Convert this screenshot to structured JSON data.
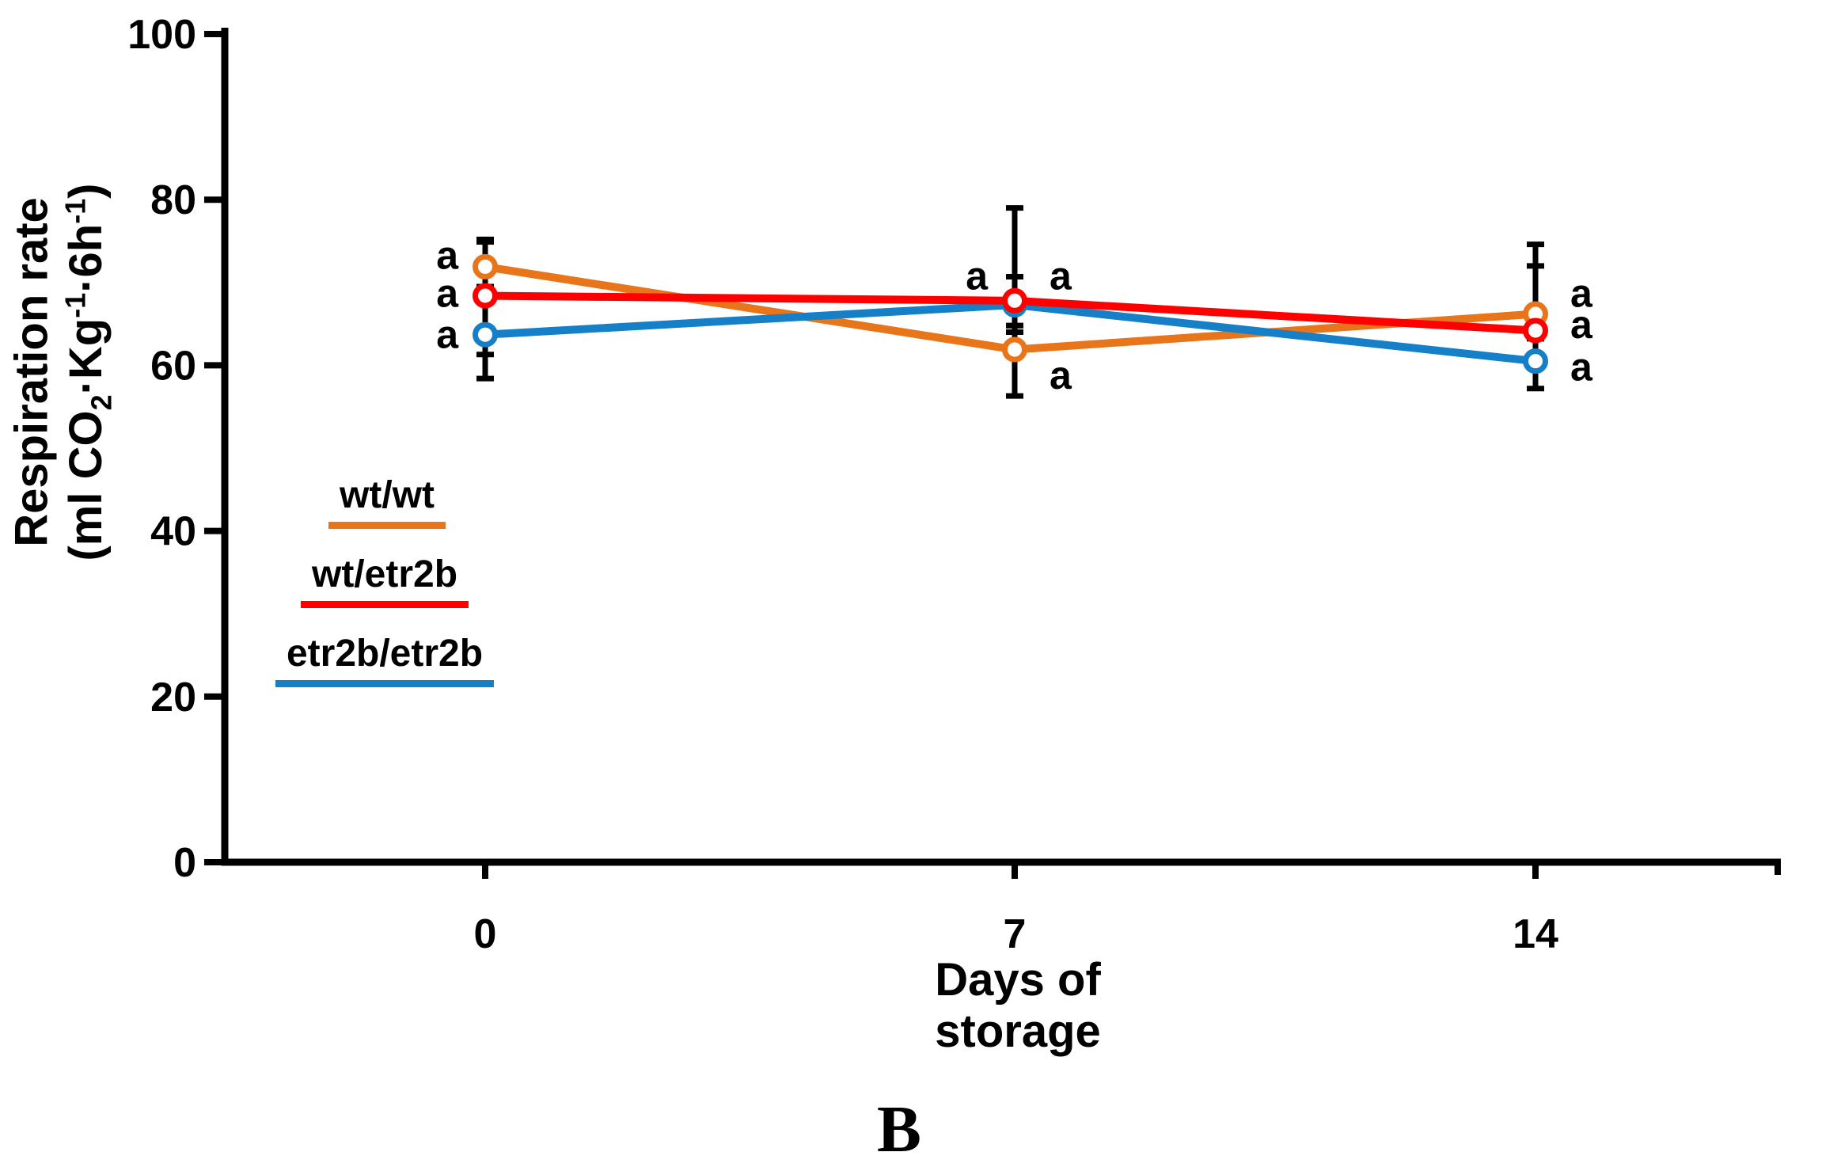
{
  "figure": {
    "panel_label": "B",
    "background": "#FFFFFF"
  },
  "chart_data": {
    "type": "line",
    "title": "",
    "xlabel_lines": [
      "Days of",
      "storage"
    ],
    "ylabel": "Respiration rate",
    "ylabel_unit": {
      "a": "(ml CO",
      "b": "2",
      "c": "·Kg",
      "d": "-1",
      "e": "·6h",
      "f": "-1",
      "g": ")"
    },
    "x": [
      0,
      7,
      14
    ],
    "x_tick_labels": [
      "0",
      "7",
      "14"
    ],
    "y_ticks": [
      0,
      20,
      40,
      60,
      80,
      100
    ],
    "ylim": [
      0,
      100
    ],
    "grid": false,
    "legend_position": "left-middle-inside",
    "axis_color": "#000000",
    "marker_style": "open-circle",
    "series": [
      {
        "name": "wt/wt",
        "color": "#E8751A",
        "values": [
          71.9,
          61.9,
          66.2
        ],
        "err_up": [
          3.3,
          2.9,
          8.4
        ],
        "err_down": [
          3.4,
          5.6,
          3.0
        ]
      },
      {
        "name": "wt/etr2b",
        "color": "#FF0000",
        "values": [
          68.4,
          67.8,
          64.2
        ],
        "err_up": [
          6.5,
          11.2,
          7.8
        ],
        "err_down": [
          7.1,
          3.0,
          2.9
        ]
      },
      {
        "name": "etr2b/etr2b",
        "color": "#1580C8",
        "values": [
          63.7,
          67.3,
          60.5
        ],
        "err_up": [
          5.8,
          3.4,
          3.6
        ],
        "err_down": [
          5.3,
          3.3,
          3.3
        ]
      }
    ],
    "sig_labels": [
      {
        "day": 0,
        "value": 73.3,
        "side": "left",
        "text": "a"
      },
      {
        "day": 0,
        "value": 68.7,
        "side": "left",
        "text": "a"
      },
      {
        "day": 0,
        "value": 63.7,
        "side": "left",
        "text": "a"
      },
      {
        "day": 7,
        "value": 70.8,
        "side": "left",
        "text": "a"
      },
      {
        "day": 7,
        "value": 70.8,
        "side": "right",
        "text": "a"
      },
      {
        "day": 7,
        "value": 58.8,
        "side": "right",
        "text": "a"
      },
      {
        "day": 14,
        "value": 68.7,
        "side": "right",
        "text": "a"
      },
      {
        "day": 14,
        "value": 64.9,
        "side": "right",
        "text": "a"
      },
      {
        "day": 14,
        "value": 59.8,
        "side": "right",
        "text": "a"
      }
    ]
  }
}
